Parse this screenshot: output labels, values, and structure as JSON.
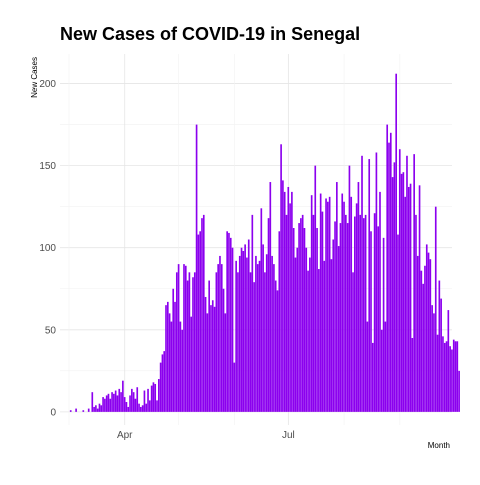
{
  "title": "New Cases of COVID-19 in Senegal",
  "chart_data": {
    "type": "bar",
    "title": "New Cases of COVID-19 in Senegal",
    "xlabel": "Month",
    "ylabel": "New Cases",
    "x_ticks": [
      "Apr",
      "Jul"
    ],
    "y_ticks": [
      0,
      50,
      100,
      150,
      200
    ],
    "ylim": [
      -8,
      218
    ],
    "xlim": [
      "2020-02-25",
      "2020-09-30"
    ],
    "start_date": "2020-03-02",
    "color": "#8B00EE",
    "grid": true,
    "values": [
      1,
      0,
      0,
      2,
      0,
      0,
      0,
      1,
      0,
      0,
      2,
      0,
      12,
      3,
      4,
      2,
      5,
      4,
      9,
      8,
      10,
      11,
      8,
      12,
      11,
      13,
      10,
      14,
      12,
      19,
      9,
      6,
      3,
      10,
      14,
      12,
      8,
      15,
      5,
      3,
      4,
      13,
      5,
      14,
      7,
      16,
      18,
      17,
      7,
      20,
      30,
      35,
      37,
      65,
      67,
      60,
      55,
      75,
      67,
      85,
      90,
      55,
      50,
      90,
      89,
      80,
      85,
      58,
      82,
      85,
      175,
      108,
      110,
      118,
      120,
      70,
      60,
      80,
      65,
      68,
      64,
      85,
      90,
      95,
      90,
      75,
      60,
      110,
      109,
      106,
      100,
      30,
      92,
      85,
      95,
      100,
      98,
      102,
      94,
      105,
      85,
      120,
      79,
      95,
      90,
      92,
      124,
      102,
      85,
      96,
      118,
      140,
      95,
      90,
      80,
      74,
      110,
      163,
      141,
      134,
      120,
      137,
      127,
      134,
      112,
      94,
      100,
      115,
      118,
      120,
      112,
      100,
      86,
      94,
      132,
      120,
      150,
      112,
      87,
      133,
      122,
      92,
      130,
      128,
      131,
      93,
      105,
      116,
      140,
      101,
      115,
      133,
      128,
      120,
      115,
      150,
      131,
      85,
      119,
      127,
      140,
      120,
      156,
      118,
      120,
      55,
      154,
      110,
      42,
      121,
      158,
      113,
      134,
      50,
      106,
      55,
      175,
      164,
      170,
      143,
      152,
      206,
      108,
      160,
      145,
      146,
      131,
      156,
      137,
      139,
      45,
      157,
      120,
      95,
      138,
      86,
      78,
      89,
      102,
      97,
      93,
      65,
      60,
      125,
      47,
      80,
      69,
      46,
      42,
      43,
      62,
      40,
      38,
      44,
      43,
      43,
      25
    ]
  }
}
